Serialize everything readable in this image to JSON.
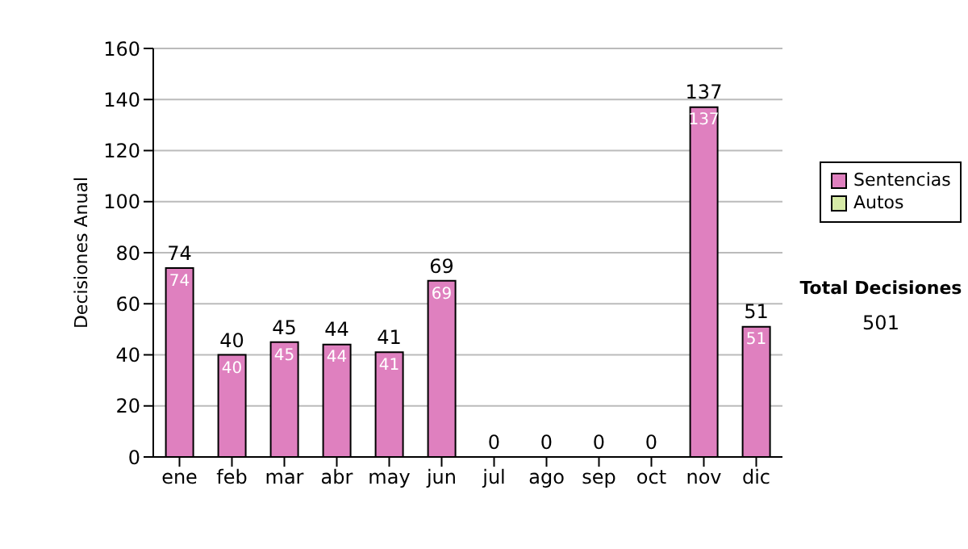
{
  "chart_data": {
    "type": "bar",
    "stacked": true,
    "ylabel": "Decisiones Anual",
    "categories": [
      "ene",
      "feb",
      "mar",
      "abr",
      "may",
      "jun",
      "jul",
      "ago",
      "sep",
      "oct",
      "nov",
      "dic"
    ],
    "series": [
      {
        "name": "Sentencias",
        "color": "#df80bf",
        "values": [
          74,
          40,
          45,
          44,
          41,
          69,
          0,
          0,
          0,
          0,
          137,
          51
        ],
        "value_labels": [
          "74",
          "40",
          "45",
          "44",
          "41",
          "69",
          null,
          null,
          null,
          null,
          "137",
          "51"
        ]
      },
      {
        "name": "Autos",
        "color": "#d6eaa6",
        "values": [
          0,
          0,
          0,
          0,
          0,
          0,
          0,
          0,
          0,
          0,
          0,
          0
        ]
      }
    ],
    "totals": [
      "74",
      "40",
      "45",
      "44",
      "41",
      "69",
      "0",
      "0",
      "0",
      "0",
      "137",
      "51"
    ],
    "ylim": [
      0,
      160
    ],
    "yticks": [
      0,
      20,
      40,
      60,
      80,
      100,
      120,
      140,
      160
    ],
    "grid": "y",
    "legend": "right",
    "annotations": [
      "Total Decisiones",
      "501"
    ]
  }
}
